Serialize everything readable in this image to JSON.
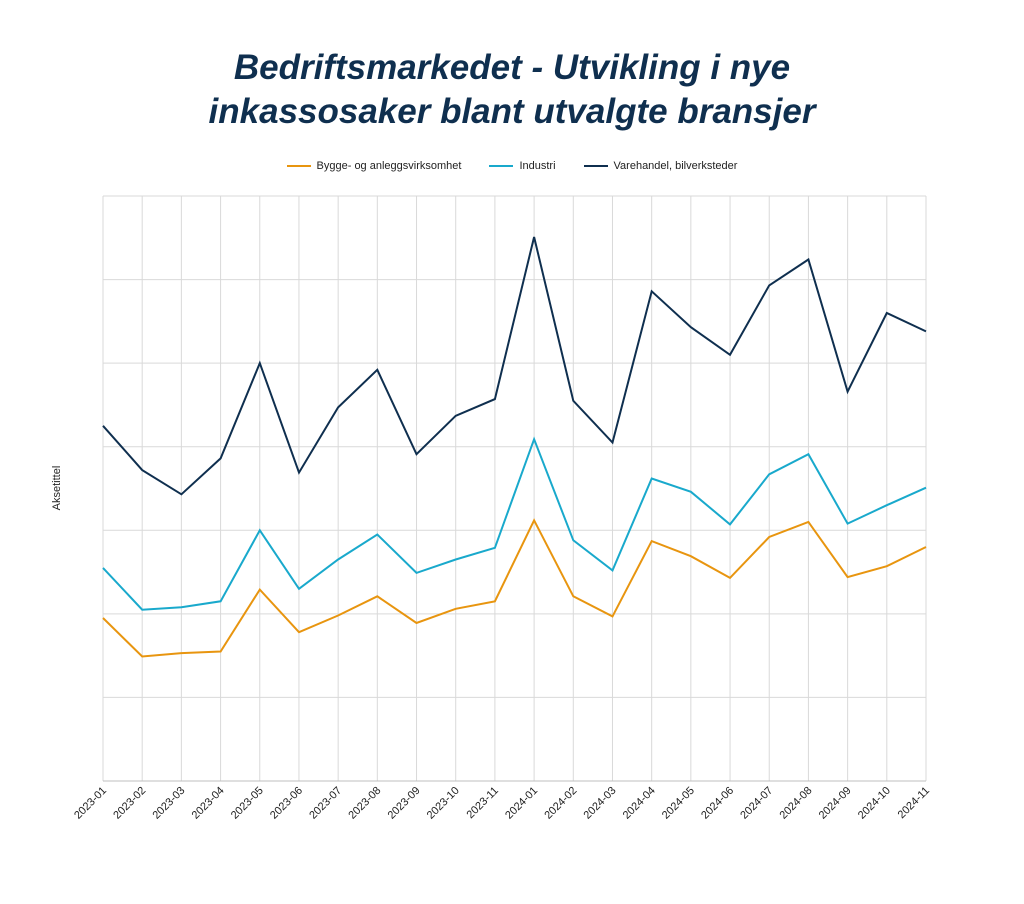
{
  "chart_data": {
    "type": "line",
    "title_lines": [
      "Bedriftsmarkedet - Utvikling i nye",
      "inkassosaker blant utvalgte bransjer"
    ],
    "ylabel": "Aksetittel",
    "xlabel": "",
    "x": [
      "2023-01",
      "2023-02",
      "2023-03",
      "2023-04",
      "2023-05",
      "2023-06",
      "2023-07",
      "2023-08",
      "2023-09",
      "2023-10",
      "2023-11",
      "2024-01",
      "2024-02",
      "2024-03",
      "2024-04",
      "2024-05",
      "2024-06",
      "2024-07",
      "2024-08",
      "2024-09",
      "2024-10",
      "2024-11"
    ],
    "ylim": [
      0,
      7
    ],
    "grid": true,
    "legend_position": "top",
    "series": [
      {
        "name": "Bygge- og anleggsvirksomhet",
        "color": "#e8950f",
        "values": [
          1.95,
          1.49,
          1.53,
          1.55,
          2.29,
          1.78,
          1.98,
          2.21,
          1.89,
          2.06,
          2.15,
          3.12,
          2.21,
          1.97,
          2.87,
          2.69,
          2.43,
          2.92,
          3.1,
          2.44,
          2.57,
          2.8
        ]
      },
      {
        "name": "Industri",
        "color": "#19a9cc",
        "values": [
          2.55,
          2.05,
          2.08,
          2.15,
          3.0,
          2.3,
          2.65,
          2.95,
          2.49,
          2.65,
          2.79,
          4.09,
          2.88,
          2.52,
          3.62,
          3.46,
          3.07,
          3.67,
          3.91,
          3.08,
          3.3,
          3.51
        ]
      },
      {
        "name": "Varehandel, bilverksteder",
        "color": "#0f2f4f",
        "values": [
          4.25,
          3.72,
          3.43,
          3.86,
          5.0,
          3.69,
          4.47,
          4.92,
          3.91,
          4.37,
          4.57,
          6.51,
          4.55,
          4.05,
          5.86,
          5.43,
          5.1,
          5.93,
          6.24,
          4.66,
          5.6,
          5.38
        ]
      }
    ]
  }
}
